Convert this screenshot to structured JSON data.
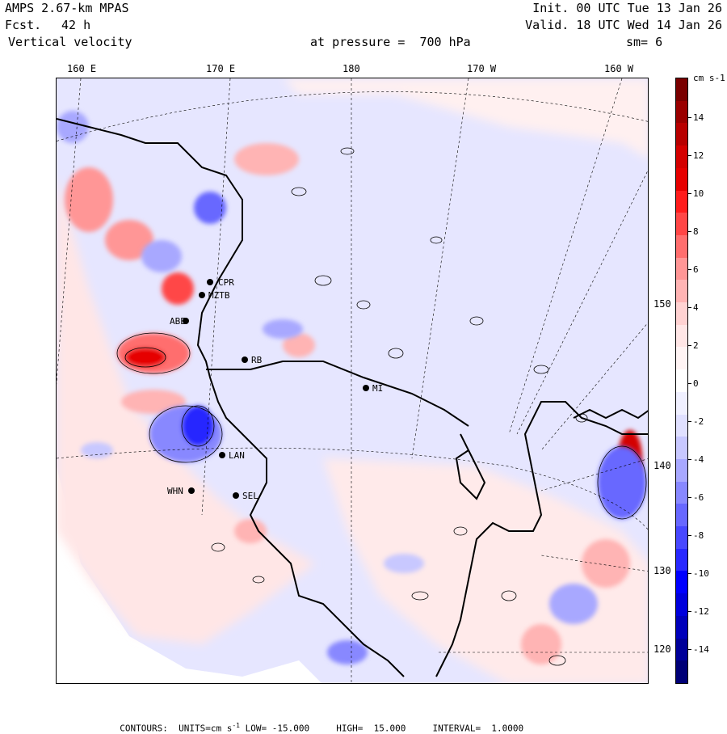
{
  "header": {
    "model": "AMPS 2.67-km MPAS",
    "forecast_label": "Fcst.",
    "forecast_hours": "42 h",
    "field": "Vertical velocity",
    "init": "Init. 00 UTC Tue 13 Jan 26",
    "valid": "Valid. 18 UTC Wed 14 Jan 26",
    "level": "at pressure =  700 hPa",
    "smoothing": "sm= 6"
  },
  "longitude_labels": [
    "160 E",
    "170 E",
    "180",
    "170 W",
    "160 W"
  ],
  "latitude_labels": [
    "150 W",
    "140 W",
    "130 W",
    "120 W"
  ],
  "stations": [
    "CPR",
    "MZTB",
    "ABE",
    "RB",
    "MI",
    "LAN",
    "WHN",
    "SEL"
  ],
  "colorbar": {
    "units": "cm s-1",
    "tick_labels": [
      "14",
      "12",
      "10",
      "8",
      "6",
      "4",
      "2",
      "0",
      "-2",
      "-4",
      "-6",
      "-8",
      "-10",
      "-12",
      "-14"
    ],
    "colors_top_to_bottom": [
      "#7a0000",
      "#9a0000",
      "#b80000",
      "#d40000",
      "#e60000",
      "#ff1c1c",
      "#ff4646",
      "#ff6e6e",
      "#ff9696",
      "#ffb4b4",
      "#ffd2d2",
      "#ffe6e6",
      "#fff4f4",
      "#ffffff",
      "#f0f0ff",
      "#e0e0ff",
      "#c8c8ff",
      "#a8a8ff",
      "#8888ff",
      "#6868ff",
      "#4848ff",
      "#2828ff",
      "#0000ff",
      "#0000dd",
      "#0000bb",
      "#000099",
      "#000077"
    ]
  },
  "contours": {
    "label": "CONTOURS:",
    "units_label": "UNITS=cm s",
    "units_exp": "-1",
    "low_label": "LOW=",
    "low_value": "-15.000",
    "high_label": "HIGH=",
    "high_value": "15.000",
    "interval_label": "INTERVAL=",
    "interval_value": "1.0000"
  }
}
